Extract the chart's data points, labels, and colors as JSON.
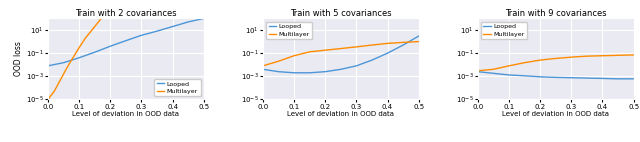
{
  "titles": [
    "Train with 2 covariances",
    "Train with 5 covariances",
    "Train with 9 covariances"
  ],
  "xlabel": "Level of deviation in OOD data",
  "ylabel": "OOD loss",
  "xlim": [
    0.0,
    0.5
  ],
  "xticks": [
    0.0,
    0.1,
    0.2,
    0.3,
    0.4,
    0.5
  ],
  "ylim_log": [
    -5,
    2
  ],
  "looped_color": "#4C96D7",
  "multilayer_color": "#FF8C00",
  "legend_labels": [
    "Looped",
    "Multilayer"
  ],
  "bg_color": "#eaeaf2",
  "plots": [
    {
      "looped_x": [
        0.0,
        0.05,
        0.1,
        0.15,
        0.2,
        0.25,
        0.3,
        0.35,
        0.4,
        0.45,
        0.5
      ],
      "looped_y": [
        0.008,
        0.015,
        0.04,
        0.12,
        0.4,
        1.2,
        3.5,
        8.0,
        20.0,
        50.0,
        100.0
      ],
      "multilayer_x": [
        0.0,
        0.02,
        0.04,
        0.06,
        0.08,
        0.1,
        0.12,
        0.15,
        0.18,
        0.2,
        0.25
      ],
      "multilayer_y": [
        1e-05,
        5e-05,
        0.0005,
        0.005,
        0.04,
        0.3,
        2.0,
        20.0,
        200.0,
        1000.0,
        100000.0
      ]
    },
    {
      "looped_x": [
        0.0,
        0.05,
        0.1,
        0.15,
        0.2,
        0.25,
        0.3,
        0.35,
        0.4,
        0.45,
        0.5
      ],
      "looped_y": [
        0.004,
        0.0025,
        0.002,
        0.002,
        0.0025,
        0.004,
        0.008,
        0.025,
        0.1,
        0.5,
        3.0
      ],
      "multilayer_x": [
        0.0,
        0.05,
        0.1,
        0.15,
        0.2,
        0.25,
        0.3,
        0.35,
        0.4,
        0.45,
        0.5
      ],
      "multilayer_y": [
        0.008,
        0.02,
        0.06,
        0.13,
        0.18,
        0.25,
        0.35,
        0.5,
        0.7,
        0.85,
        1.0
      ]
    },
    {
      "looped_x": [
        0.0,
        0.05,
        0.1,
        0.15,
        0.2,
        0.25,
        0.3,
        0.35,
        0.4,
        0.45,
        0.5
      ],
      "looped_y": [
        0.0025,
        0.0018,
        0.0013,
        0.0011,
        0.0009,
        0.0008,
        0.00075,
        0.0007,
        0.00065,
        0.0006,
        0.0006
      ],
      "multilayer_x": [
        0.0,
        0.05,
        0.1,
        0.15,
        0.2,
        0.25,
        0.3,
        0.35,
        0.4,
        0.45,
        0.5
      ],
      "multilayer_y": [
        0.003,
        0.004,
        0.008,
        0.015,
        0.025,
        0.035,
        0.045,
        0.055,
        0.06,
        0.065,
        0.07
      ]
    }
  ]
}
